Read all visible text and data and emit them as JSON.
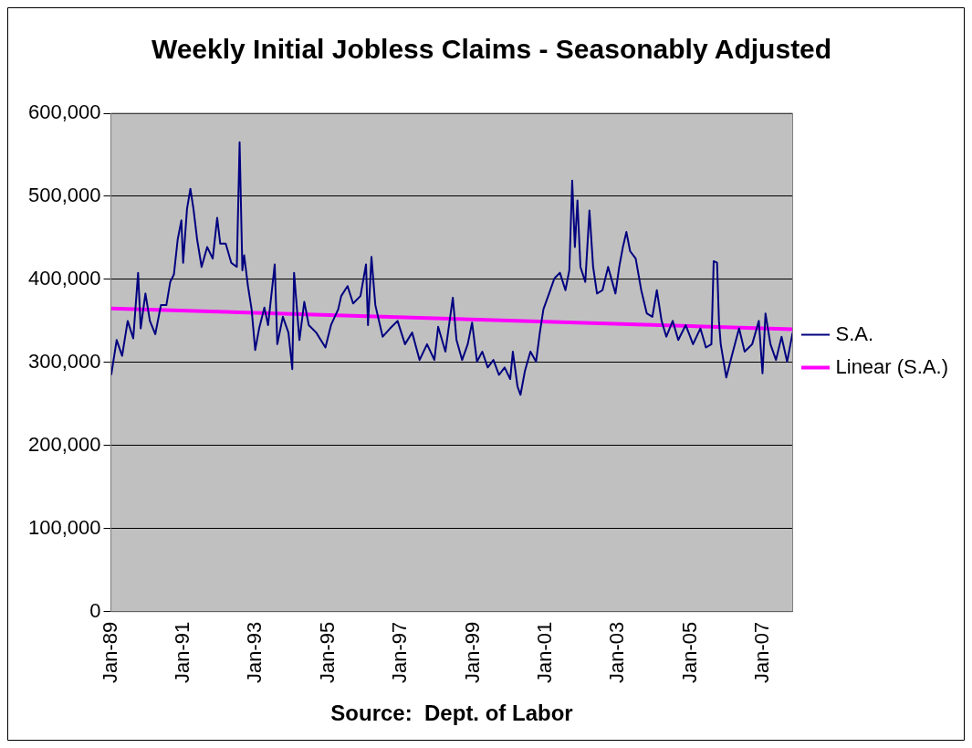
{
  "chart_data": {
    "type": "line",
    "title": "Weekly Initial Jobless Claims - Seasonably Adjusted",
    "annotations": [
      "Source:  Dept. of Labor"
    ],
    "xlim": [
      "1989-01-01",
      "2007-10-25"
    ],
    "xticks": [
      {
        "value": "1989-01",
        "label": "Jan-89"
      },
      {
        "value": "1991-01",
        "label": "Jan-91"
      },
      {
        "value": "1993-01",
        "label": "Jan-93"
      },
      {
        "value": "1995-01",
        "label": "Jan-95"
      },
      {
        "value": "1997-01",
        "label": "Jan-97"
      },
      {
        "value": "1999-01",
        "label": "Jan-99"
      },
      {
        "value": "2001-01",
        "label": "Jan-01"
      },
      {
        "value": "2003-01",
        "label": "Jan-03"
      },
      {
        "value": "2005-01",
        "label": "Jan-05"
      },
      {
        "value": "2007-01",
        "label": "Jan-07"
      }
    ],
    "ylim": [
      0,
      600000
    ],
    "yticks": [
      {
        "value": 0,
        "label": "0"
      },
      {
        "value": 100000,
        "label": "100,000"
      },
      {
        "value": 200000,
        "label": "200,000"
      },
      {
        "value": 300000,
        "label": "300,000"
      },
      {
        "value": 400000,
        "label": "400,000"
      },
      {
        "value": 500000,
        "label": "500,000"
      },
      {
        "value": 600000,
        "label": "600,000"
      }
    ],
    "grid": "y",
    "legend": "right",
    "marker": "none",
    "series": [
      {
        "name": "S.A.",
        "type": "line",
        "color": "#000080",
        "x": [
          "1989-01-04",
          "1989-02-28",
          "1989-04-24",
          "1989-06-19",
          "1989-08-14",
          "1989-10-02",
          "1989-10-28",
          "1989-12-15",
          "1990-01-29",
          "1990-03-24",
          "1990-05-20",
          "1990-07-14",
          "1990-08-22",
          "1990-09-28",
          "1990-11-05",
          "1990-12-12",
          "1990-12-30",
          "1991-02-07",
          "1991-03-13",
          "1991-04-13",
          "1991-05-20",
          "1991-07-04",
          "1991-08-29",
          "1991-10-24",
          "1991-12-08",
          "1992-01-08",
          "1992-03-03",
          "1992-04-28",
          "1992-06-23",
          "1992-07-21",
          "1992-08-18",
          "1992-09-05",
          "1992-10-13",
          "1992-11-19",
          "1992-12-25",
          "1993-02-03",
          "1993-03-28",
          "1993-05-04",
          "1993-07-10",
          "1993-08-05",
          "1993-09-30",
          "1993-11-25",
          "1994-01-03",
          "1994-01-21",
          "1994-03-16",
          "1994-05-04",
          "1994-06-18",
          "1994-09-01",
          "1994-12-03",
          "1995-01-28",
          "1995-04-11",
          "1995-05-11",
          "1995-07-14",
          "1995-09-08",
          "1995-11-21",
          "1996-01-16",
          "1996-02-05",
          "1996-03-11",
          "1996-04-19",
          "1996-07-02",
          "1996-09-15",
          "1996-11-29",
          "1997-02-12",
          "1997-04-25",
          "1997-07-09",
          "1997-09-22",
          "1997-12-05",
          "1998-01-12",
          "1998-03-26",
          "1998-06-09",
          "1998-07-16",
          "1998-09-11",
          "1998-11-06",
          "1998-12-20",
          "1999-02-07",
          "1999-04-02",
          "1999-05-27",
          "1999-07-23",
          "1999-09-17",
          "1999-11-13",
          "2000-01-08",
          "2000-02-04",
          "2000-03-22",
          "2000-04-21",
          "2000-06-05",
          "2000-07-30",
          "2000-09-25",
          "2000-11-02",
          "2000-12-08",
          "2001-02-03",
          "2001-03-28",
          "2001-05-23",
          "2001-07-18",
          "2001-08-26",
          "2001-09-24",
          "2001-10-21",
          "2001-11-16",
          "2001-12-16",
          "2002-02-03",
          "2002-03-17",
          "2002-04-23",
          "2002-06-01",
          "2002-07-26",
          "2002-09-21",
          "2002-12-04",
          "2003-01-11",
          "2003-02-17",
          "2003-03-24",
          "2003-05-01",
          "2003-06-26",
          "2003-08-21",
          "2003-10-16",
          "2003-12-11",
          "2004-01-25",
          "2004-03-13",
          "2004-04-30",
          "2004-07-03",
          "2004-08-28",
          "2004-11-11",
          "2005-01-24",
          "2005-04-08",
          "2005-06-03",
          "2005-07-28",
          "2005-08-20",
          "2005-09-23",
          "2005-10-12",
          "2005-10-30",
          "2005-12-25",
          "2006-02-19",
          "2006-05-03",
          "2006-06-28",
          "2006-09-12",
          "2006-11-18",
          "2006-12-25",
          "2007-01-24",
          "2007-03-15",
          "2007-05-10",
          "2007-07-05",
          "2007-08-30",
          "2007-10-25"
        ],
        "values": [
          285000,
          327000,
          308000,
          350000,
          329000,
          408000,
          341000,
          383000,
          350000,
          334000,
          369000,
          369000,
          397000,
          406000,
          448000,
          471000,
          420000,
          485000,
          509000,
          485000,
          448000,
          415000,
          439000,
          425000,
          474000,
          443000,
          443000,
          420000,
          415000,
          565000,
          411000,
          429000,
          392000,
          364000,
          315000,
          341000,
          366000,
          345000,
          418000,
          322000,
          355000,
          336000,
          292000,
          408000,
          327000,
          373000,
          345000,
          336000,
          318000,
          345000,
          364000,
          380000,
          392000,
          371000,
          380000,
          418000,
          345000,
          427000,
          369000,
          331000,
          341000,
          350000,
          322000,
          336000,
          303000,
          322000,
          303000,
          343000,
          313000,
          378000,
          327000,
          303000,
          322000,
          348000,
          301000,
          313000,
          294000,
          303000,
          285000,
          294000,
          280000,
          313000,
          271000,
          261000,
          290000,
          313000,
          301000,
          336000,
          364000,
          383000,
          401000,
          408000,
          387000,
          411000,
          519000,
          439000,
          495000,
          415000,
          397000,
          483000,
          415000,
          383000,
          387000,
          415000,
          383000,
          415000,
          439000,
          457000,
          434000,
          425000,
          387000,
          359000,
          355000,
          387000,
          350000,
          331000,
          350000,
          327000,
          345000,
          322000,
          341000,
          318000,
          322000,
          422000,
          420000,
          350000,
          322000,
          282000,
          308000,
          341000,
          313000,
          322000,
          350000,
          287000,
          359000,
          322000,
          303000,
          331000,
          301000,
          336000
        ]
      },
      {
        "name": "Linear (S.A.)",
        "type": "line",
        "color": "#ff00ff",
        "x": [
          "1989-01-04",
          "2007-10-25"
        ],
        "values": [
          365000,
          340000
        ]
      }
    ]
  }
}
